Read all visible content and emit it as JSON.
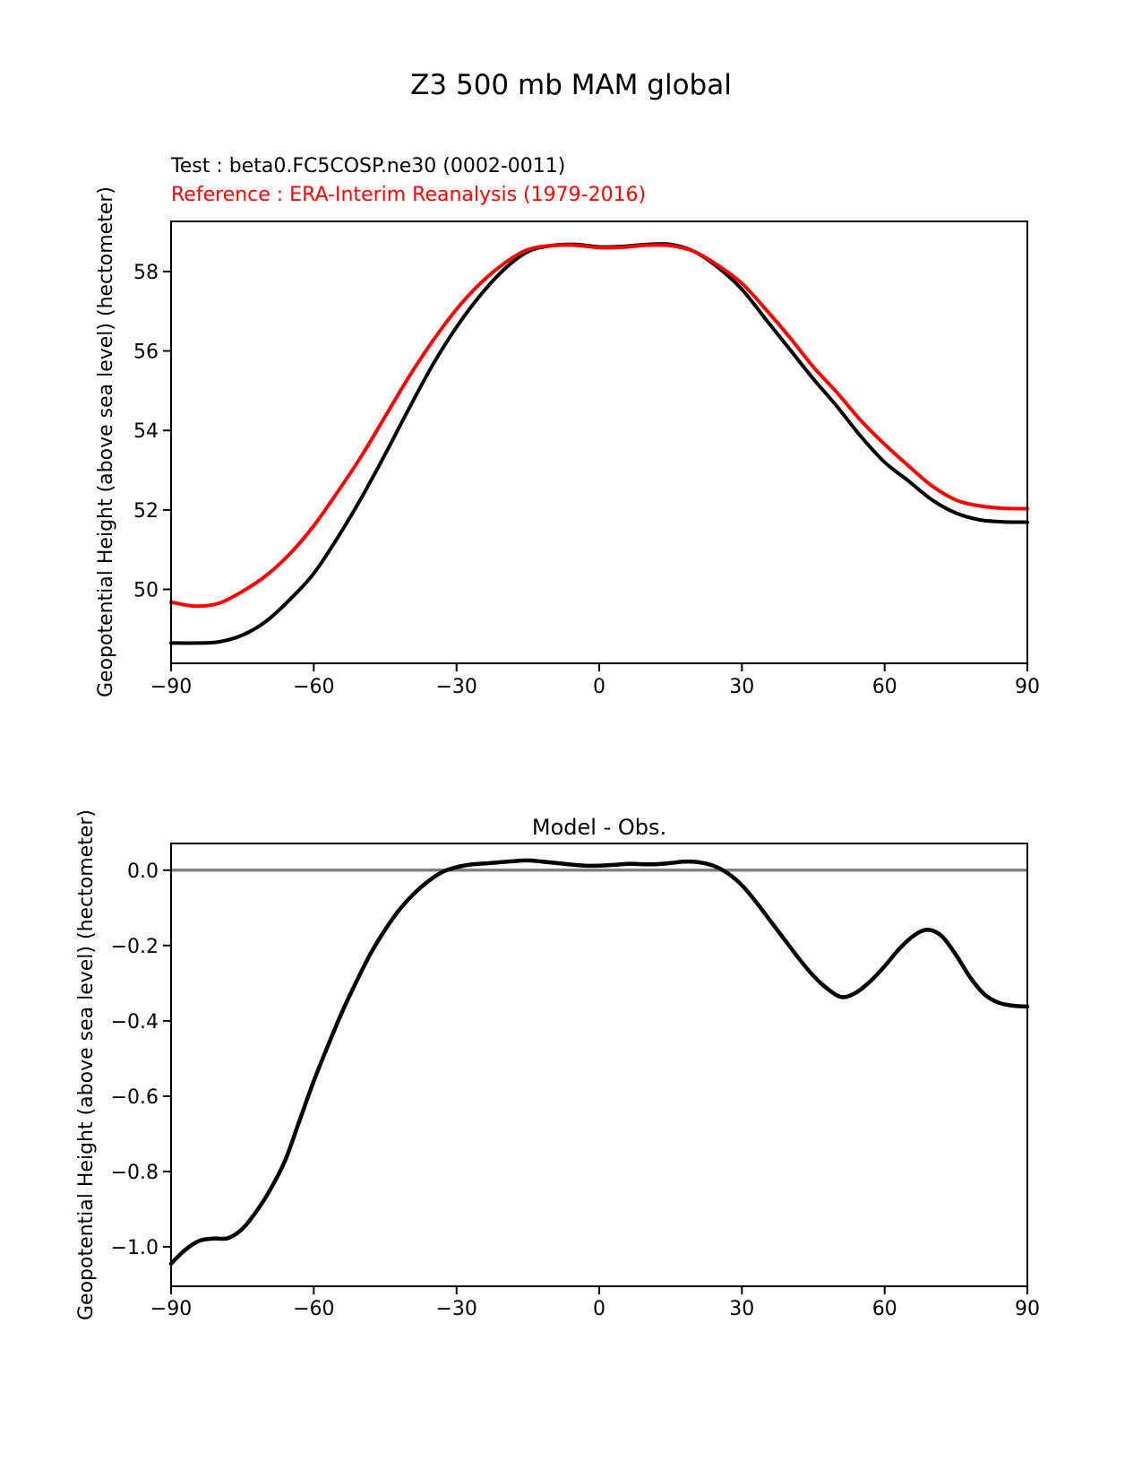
{
  "figure": {
    "title": "Z3 500 mb MAM global",
    "legend": [
      {
        "label": "Test : beta0.FC5COSP.ne30 (0002-0011)",
        "color": "#000000"
      },
      {
        "label": "Reference : ERA-Interim Reanalysis (1979-2016)",
        "color": "#ff0000"
      }
    ]
  },
  "chart_data": [
    {
      "type": "line",
      "title": "",
      "xlabel": "",
      "ylabel": "Geopotential Height (above sea level) (hectometer)",
      "xlim": [
        -90,
        90
      ],
      "ylim": [
        48.14,
        59.26
      ],
      "grid": false,
      "legend_position": "above-left",
      "xticks": {
        "values": [
          -90,
          -60,
          -30,
          0,
          30,
          60,
          90
        ],
        "labels": [
          "−90",
          "−60",
          "−30",
          "0",
          "30",
          "60",
          "90"
        ]
      },
      "yticks": {
        "values": [
          50,
          52,
          54,
          56,
          58
        ],
        "labels": [
          "50",
          "52",
          "54",
          "56",
          "58"
        ]
      },
      "x": [
        -90,
        -85,
        -80,
        -75,
        -70,
        -65,
        -60,
        -55,
        -50,
        -45,
        -40,
        -35,
        -30,
        -25,
        -20,
        -15,
        -10,
        -5,
        0,
        5,
        10,
        15,
        20,
        25,
        30,
        35,
        40,
        45,
        50,
        55,
        60,
        65,
        70,
        75,
        80,
        85,
        90
      ],
      "series": [
        {
          "name": "Test : beta0.FC5COSP.ne30 (0002-0011)",
          "color": "#000000",
          "linewidth": 4,
          "values": [
            48.65,
            48.65,
            48.68,
            48.85,
            49.2,
            49.75,
            50.4,
            51.3,
            52.3,
            53.4,
            54.55,
            55.65,
            56.6,
            57.4,
            58.05,
            58.5,
            58.65,
            58.68,
            58.62,
            58.63,
            58.68,
            58.68,
            58.5,
            58.1,
            57.55,
            56.8,
            56.05,
            55.3,
            54.6,
            53.85,
            53.2,
            52.73,
            52.25,
            51.92,
            51.75,
            51.7,
            51.69
          ]
        },
        {
          "name": "Reference : ERA-Interim Reanalysis (1979-2016)",
          "color": "#ff0000",
          "linewidth": 4,
          "values": [
            49.68,
            49.58,
            49.65,
            49.95,
            50.35,
            50.9,
            51.6,
            52.45,
            53.35,
            54.35,
            55.35,
            56.25,
            57.05,
            57.7,
            58.2,
            58.55,
            58.65,
            58.66,
            58.6,
            58.61,
            58.66,
            58.65,
            58.5,
            58.15,
            57.7,
            57.05,
            56.35,
            55.6,
            54.95,
            54.25,
            53.65,
            53.11,
            52.6,
            52.25,
            52.1,
            52.04,
            52.03
          ]
        }
      ]
    },
    {
      "type": "line",
      "title": "Model - Obs.",
      "xlabel": "",
      "ylabel": "Geopotential Height (above sea level) (hectometer)",
      "xlim": [
        -90,
        90
      ],
      "ylim": [
        -1.105,
        0.071
      ],
      "grid": false,
      "zero_line": {
        "value": 0,
        "color": "#808080",
        "linewidth": 3.5
      },
      "xticks": {
        "values": [
          -90,
          -60,
          -30,
          0,
          30,
          60,
          90
        ],
        "labels": [
          "−90",
          "−60",
          "−30",
          "0",
          "30",
          "60",
          "90"
        ]
      },
      "yticks": {
        "values": [
          0,
          -0.2,
          -0.4,
          -0.6,
          -0.8,
          -1.0
        ],
        "labels": [
          "0.0",
          "−0.2",
          "−0.4",
          "−0.6",
          "−0.8",
          "−1.0"
        ]
      },
      "x": [
        -90,
        -87,
        -84,
        -81,
        -78,
        -75,
        -72,
        -69,
        -66,
        -63,
        -60,
        -57,
        -54,
        -51,
        -48,
        -45,
        -42,
        -39,
        -36,
        -33,
        -30,
        -27,
        -24,
        -21,
        -18,
        -15,
        -12,
        -9,
        -6,
        -3,
        0,
        3,
        6,
        9,
        12,
        15,
        18,
        21,
        24,
        27,
        30,
        33,
        36,
        39,
        42,
        45,
        48,
        51,
        54,
        57,
        60,
        63,
        66,
        69,
        72,
        75,
        78,
        81,
        84,
        87,
        90
      ],
      "series": [
        {
          "name": "Model - Obs.",
          "color": "#000000",
          "linewidth": 4.5,
          "values": [
            -1.045,
            -1.008,
            -0.984,
            -0.978,
            -0.977,
            -0.952,
            -0.905,
            -0.845,
            -0.77,
            -0.665,
            -0.56,
            -0.465,
            -0.375,
            -0.295,
            -0.22,
            -0.158,
            -0.105,
            -0.063,
            -0.03,
            -0.005,
            0.008,
            0.015,
            0.018,
            0.021,
            0.024,
            0.026,
            0.023,
            0.019,
            0.015,
            0.012,
            0.012,
            0.014,
            0.017,
            0.016,
            0.016,
            0.019,
            0.023,
            0.021,
            0.012,
            -0.008,
            -0.04,
            -0.085,
            -0.135,
            -0.185,
            -0.235,
            -0.28,
            -0.315,
            -0.337,
            -0.325,
            -0.295,
            -0.255,
            -0.21,
            -0.175,
            -0.158,
            -0.175,
            -0.225,
            -0.285,
            -0.33,
            -0.352,
            -0.36,
            -0.362
          ]
        }
      ]
    }
  ]
}
